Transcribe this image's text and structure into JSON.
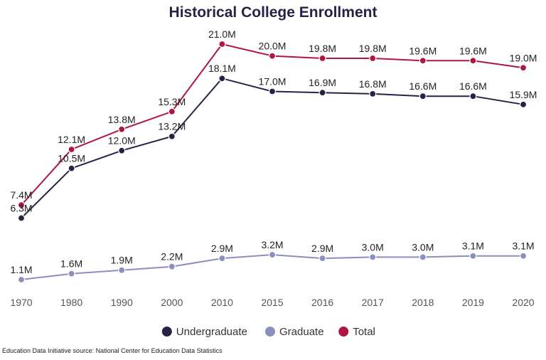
{
  "chart_data": {
    "type": "line",
    "title": "Historical College Enrollment",
    "xlabel": "",
    "ylabel": "",
    "categories": [
      "1970",
      "1980",
      "1990",
      "2000",
      "2010",
      "2015",
      "2016",
      "2017",
      "2018",
      "2019",
      "2020"
    ],
    "series": [
      {
        "name": "Undergraduate",
        "color": "#252447",
        "values": [
          6.3,
          10.5,
          12.0,
          13.2,
          18.1,
          17.0,
          16.9,
          16.8,
          16.6,
          16.6,
          15.9
        ],
        "labels": [
          "6.3M",
          "10.5M",
          "12.0M",
          "13.2M",
          "18.1M",
          "17.0M",
          "16.9M",
          "16.8M",
          "16.6M",
          "16.6M",
          "15.9M"
        ]
      },
      {
        "name": "Graduate",
        "color": "#8a8fbb",
        "values": [
          1.1,
          1.6,
          1.9,
          2.2,
          2.9,
          3.2,
          2.9,
          3.0,
          3.0,
          3.1,
          3.1
        ],
        "labels": [
          "1.1M",
          "1.6M",
          "1.9M",
          "2.2M",
          "2.9M",
          "3.2M",
          "2.9M",
          "3.0M",
          "3.0M",
          "3.1M",
          "3.1M"
        ]
      },
      {
        "name": "Total",
        "color": "#b0163f",
        "values": [
          7.4,
          12.1,
          13.8,
          15.3,
          21.0,
          20.0,
          19.8,
          19.8,
          19.6,
          19.6,
          19.0
        ],
        "labels": [
          "7.4M",
          "12.1M",
          "13.8M",
          "15.3M",
          "21.0M",
          "20.0M",
          "19.8M",
          "19.8M",
          "19.6M",
          "19.6M",
          "19.0M"
        ]
      }
    ],
    "y_axis_visible": false,
    "grid": false,
    "legend_position": "bottom-center"
  },
  "source_text": "Education Data Initiative source: National Center for Education Data Statistics"
}
